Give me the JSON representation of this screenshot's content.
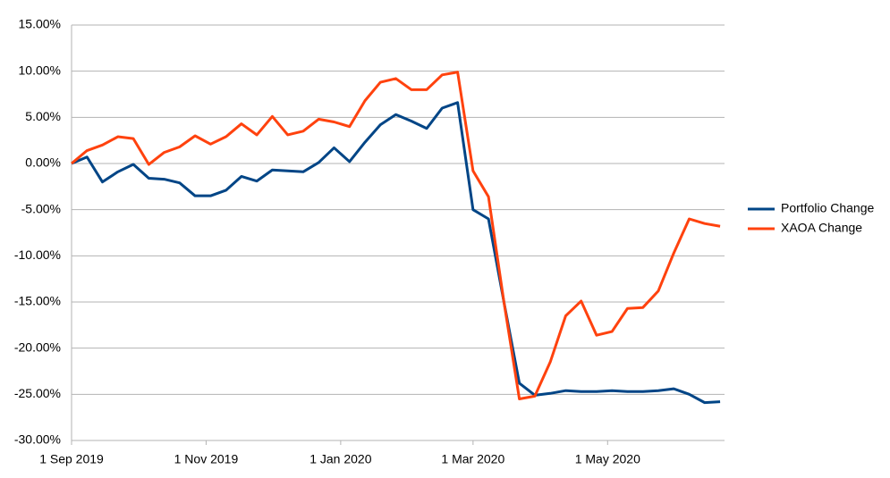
{
  "chart_data": {
    "type": "line",
    "x": [
      "2019-09-01",
      "2019-09-08",
      "2019-09-15",
      "2019-09-22",
      "2019-09-29",
      "2019-10-06",
      "2019-10-13",
      "2019-10-20",
      "2019-10-27",
      "2019-11-03",
      "2019-11-10",
      "2019-11-17",
      "2019-11-24",
      "2019-12-01",
      "2019-12-08",
      "2019-12-15",
      "2019-12-22",
      "2019-12-29",
      "2020-01-05",
      "2020-01-12",
      "2020-01-19",
      "2020-01-26",
      "2020-02-02",
      "2020-02-09",
      "2020-02-16",
      "2020-02-23",
      "2020-03-01",
      "2020-03-08",
      "2020-03-15",
      "2020-03-22",
      "2020-03-29",
      "2020-04-05",
      "2020-04-12",
      "2020-04-19",
      "2020-04-26",
      "2020-05-03",
      "2020-05-10",
      "2020-05-17",
      "2020-05-24",
      "2020-05-31",
      "2020-06-07",
      "2020-06-14",
      "2020-06-21"
    ],
    "series": [
      {
        "name": "Portfolio Change",
        "color": "#004586",
        "values": [
          0,
          0.7,
          -2,
          -0.9,
          -0.1,
          -1.6,
          -1.7,
          -2.1,
          -3.5,
          -3.5,
          -2.9,
          -1.4,
          -1.9,
          -0.7,
          -0.8,
          -0.9,
          0.1,
          1.7,
          0.2,
          2.3,
          4.2,
          5.3,
          4.6,
          3.8,
          6.0,
          6.6,
          -5.0,
          -6.0,
          -15,
          -23.8,
          -25.1,
          -24.9,
          -24.6,
          -24.7,
          -24.7,
          -24.6,
          -24.7,
          -24.7,
          -24.6,
          -24.4,
          -25.0,
          -25.9,
          -25.8
        ]
      },
      {
        "name": "XAOA Change",
        "color": "#ff420e",
        "values": [
          0,
          1.4,
          2.0,
          2.9,
          2.7,
          -0.1,
          1.2,
          1.8,
          3.0,
          2.1,
          2.9,
          4.3,
          3.1,
          5.1,
          3.1,
          3.5,
          4.8,
          4.5,
          4.0,
          6.8,
          8.8,
          9.2,
          8.0,
          8.0,
          9.6,
          9.9,
          -0.8,
          -3.6,
          -15,
          -25.5,
          -25.2,
          -21.5,
          -16.5,
          -14.9,
          -18.6,
          -18.2,
          -15.7,
          -15.6,
          -13.8,
          -9.7,
          -6.0,
          -6.5,
          -6.8
        ]
      }
    ],
    "xlim": [
      "2019-09-01",
      "2020-06-23"
    ],
    "xticks": [
      {
        "value": "2019-09-01",
        "label": "1 Sep 2019"
      },
      {
        "value": "2019-11-01",
        "label": "1 Nov 2019"
      },
      {
        "value": "2020-01-01",
        "label": "1 Jan 2020"
      },
      {
        "value": "2020-03-01",
        "label": "1 Mar 2020"
      },
      {
        "value": "2020-05-01",
        "label": "1 May 2020"
      }
    ],
    "ylim": [
      -30,
      15
    ],
    "yticks": [
      {
        "value": 15,
        "label": "15.00%"
      },
      {
        "value": 10,
        "label": "10.00%"
      },
      {
        "value": 5,
        "label": "5.00%"
      },
      {
        "value": 0,
        "label": "0.00%"
      },
      {
        "value": -5,
        "label": "-5.00%"
      },
      {
        "value": -10,
        "label": "-10.00%"
      },
      {
        "value": -15,
        "label": "-15.00%"
      },
      {
        "value": -20,
        "label": "-20.00%"
      },
      {
        "value": -25,
        "label": "-25.00%"
      },
      {
        "value": -30,
        "label": "-30.00%"
      }
    ],
    "grid": true,
    "legend": "right"
  }
}
